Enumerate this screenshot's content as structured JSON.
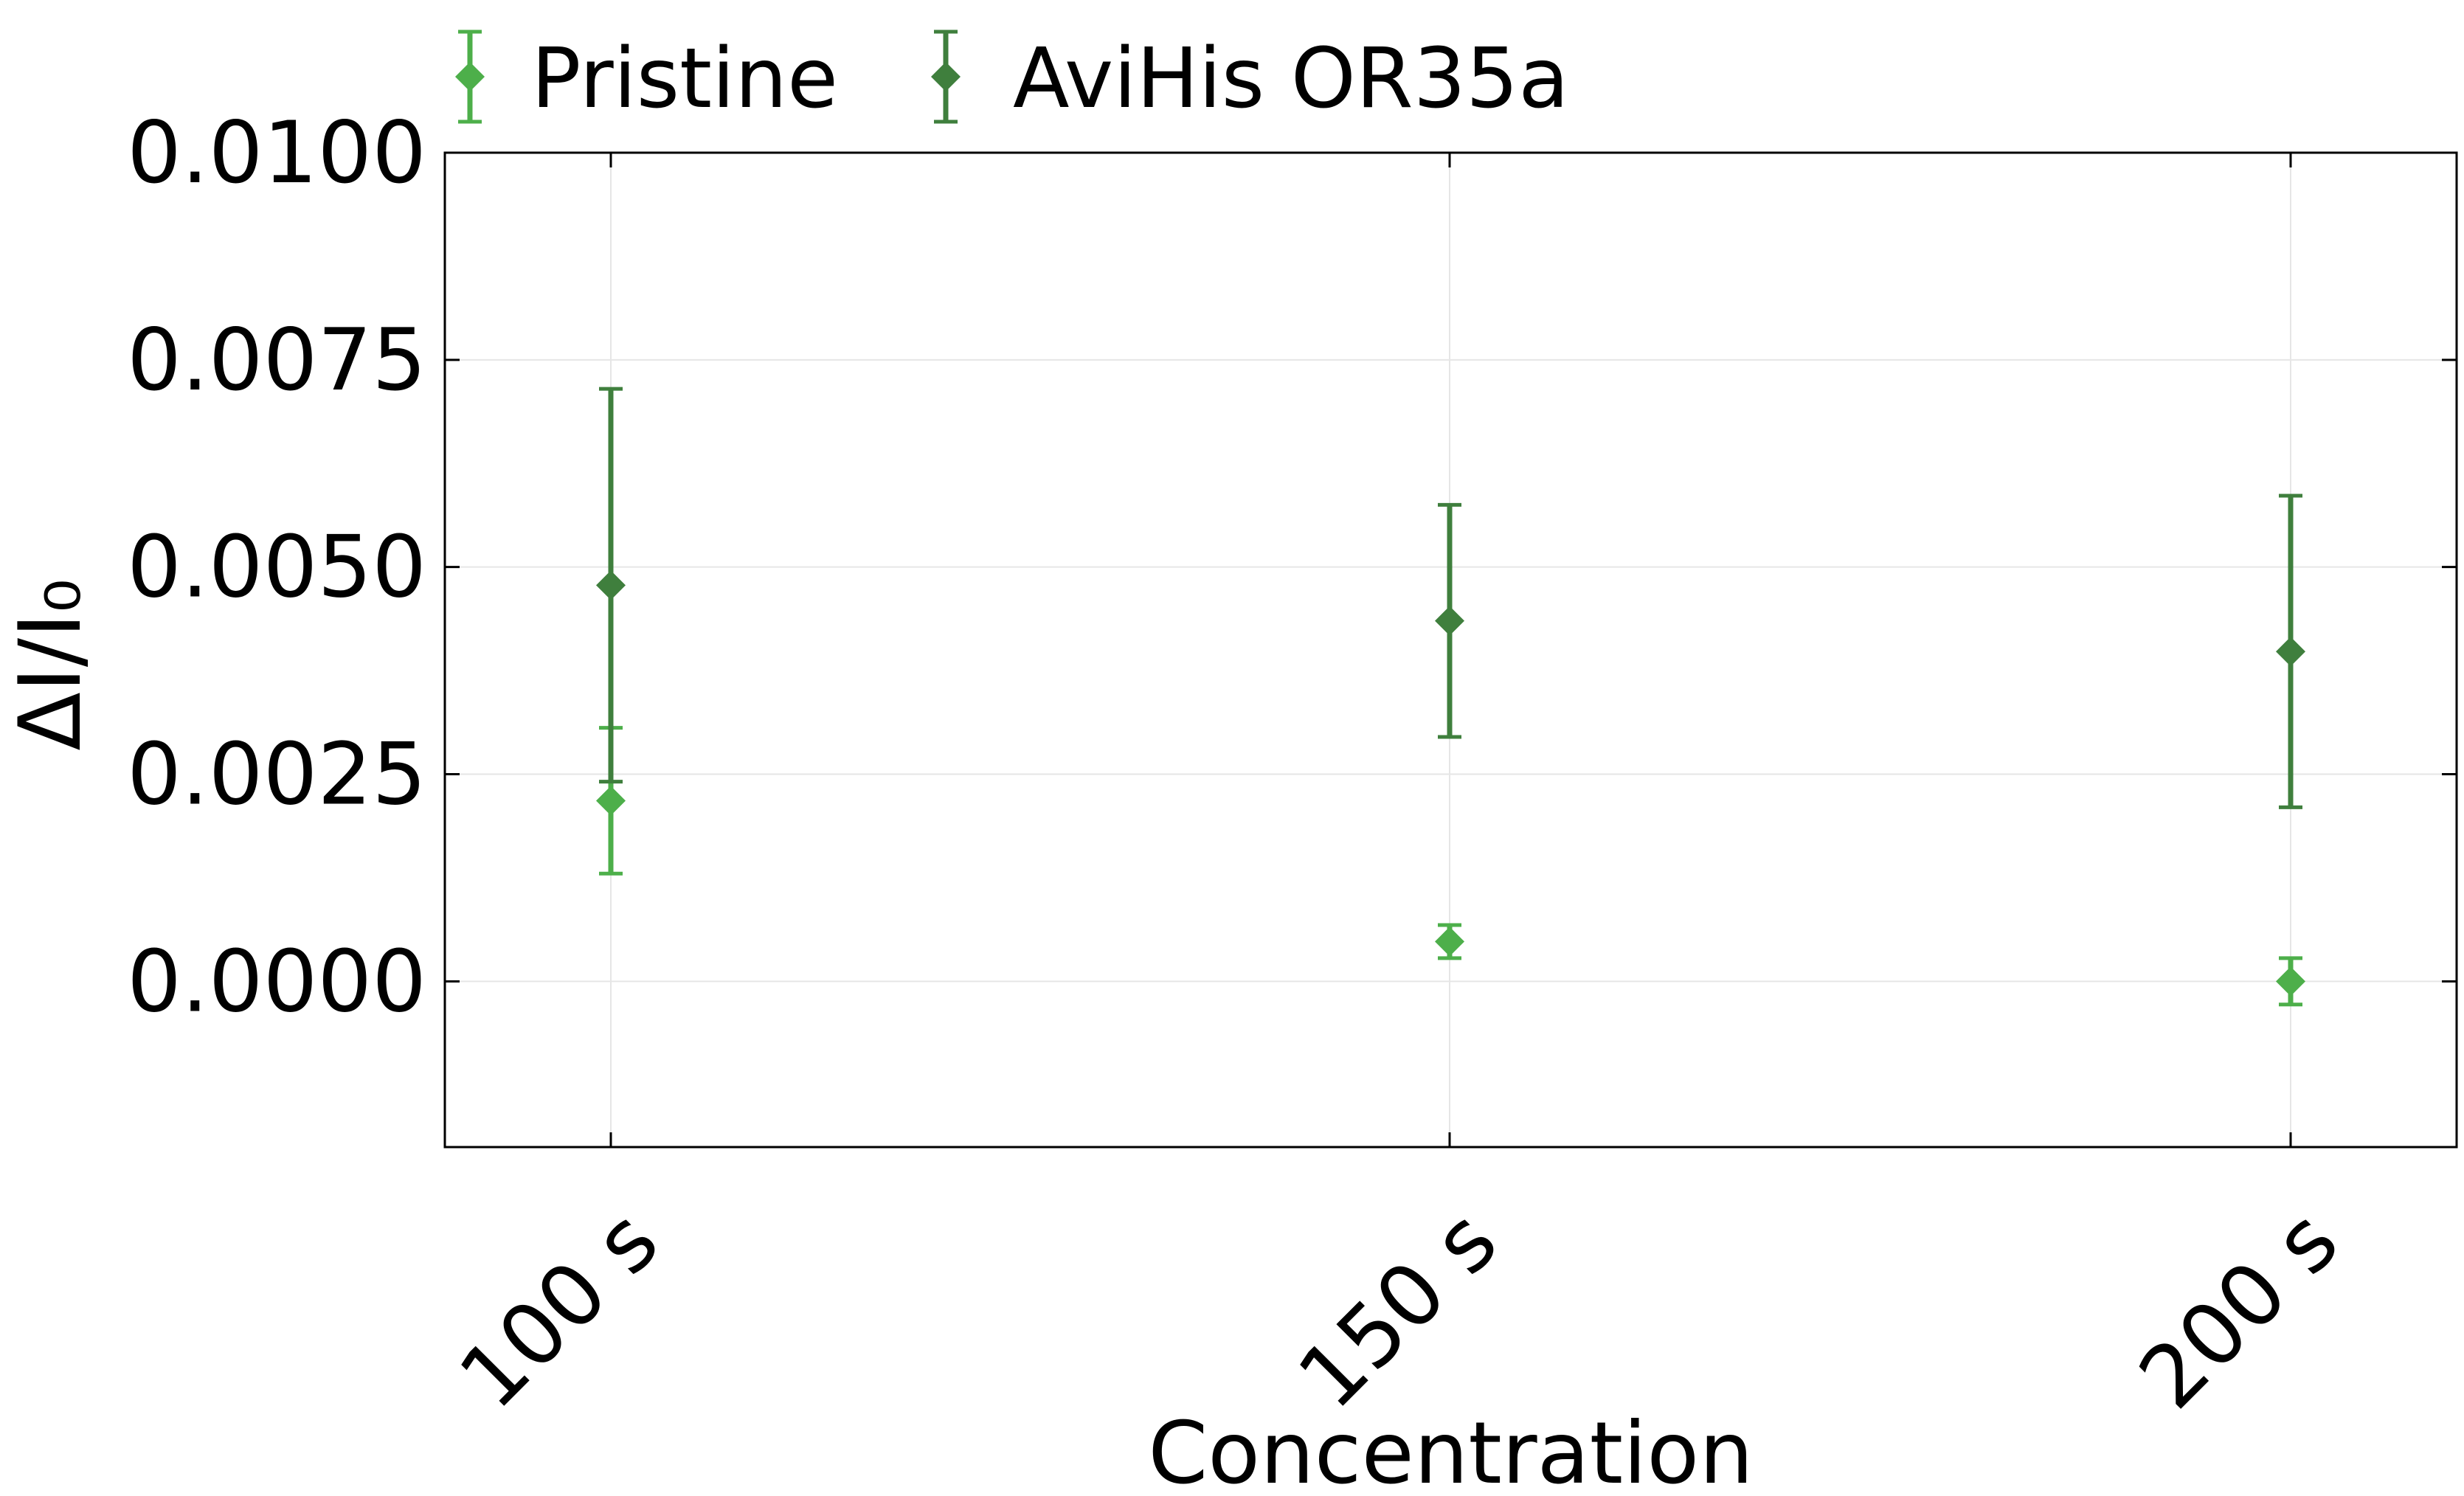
{
  "chart_data": {
    "type": "scatter",
    "title": "",
    "xlabel": "Concentration",
    "ylabel": "ΔI/I₀",
    "categories": [
      "100 s",
      "150 s",
      "200 s"
    ],
    "ylim": [
      -0.002,
      0.01
    ],
    "yticks": [
      0.0,
      0.0025,
      0.005,
      0.0075,
      0.01
    ],
    "ytick_labels": [
      "0.0000",
      "0.0025",
      "0.0050",
      "0.0075",
      "0.0100"
    ],
    "grid": true,
    "legend_position": "top",
    "series": [
      {
        "name": "Pristine",
        "color": "#4daf4a",
        "marker": "diamond",
        "values": [
          0.00218,
          0.00048,
          0.0
        ],
        "errors": [
          0.00088,
          0.0002,
          0.00028
        ]
      },
      {
        "name": "AviHis OR35a",
        "color": "#3f7f3d",
        "marker": "diamond",
        "values": [
          0.00478,
          0.00435,
          0.00398
        ],
        "errors": [
          0.00237,
          0.0014,
          0.00188
        ]
      }
    ]
  }
}
